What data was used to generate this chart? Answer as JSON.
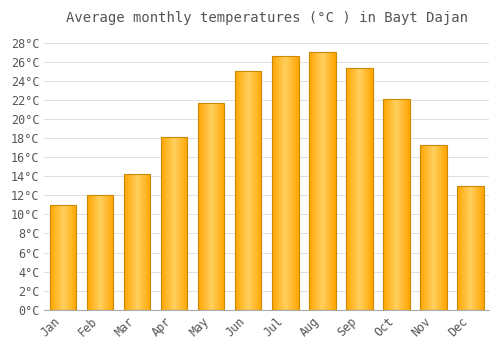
{
  "title": "Average monthly temperatures (°C ) in Bayt Dajan",
  "months": [
    "Jan",
    "Feb",
    "Mar",
    "Apr",
    "May",
    "Jun",
    "Jul",
    "Aug",
    "Sep",
    "Oct",
    "Nov",
    "Dec"
  ],
  "values": [
    11.0,
    12.0,
    14.2,
    18.1,
    21.7,
    25.0,
    26.6,
    27.0,
    25.3,
    22.1,
    17.3,
    13.0
  ],
  "bar_color_center": "#FFD060",
  "bar_color_edge": "#FFA500",
  "bar_outline_color": "#CC8800",
  "background_color": "#FFFFFF",
  "grid_color": "#E0E0E0",
  "text_color": "#555555",
  "ylim": [
    0,
    29
  ],
  "ytick_step": 2,
  "title_fontsize": 10,
  "tick_fontsize": 8.5
}
